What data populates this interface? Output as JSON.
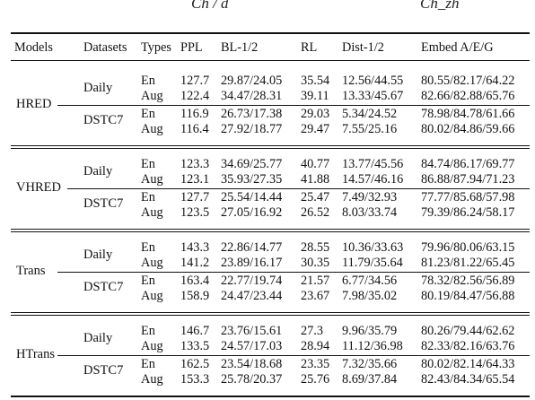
{
  "top_fragments": {
    "left": "Ch / d",
    "right": "Ch_zh"
  },
  "table": {
    "headers": [
      "Models",
      "Datasets",
      "Types",
      "PPL",
      "BL-1/2",
      "RL",
      "Dist-1/2",
      "Embed A/E/G"
    ],
    "groups": [
      {
        "model": "HRED",
        "datasets": [
          {
            "name": "Daily",
            "rows": [
              {
                "type": "En",
                "ppl": "127.7",
                "bl": "29.87/24.05",
                "rl": "35.54",
                "dist": "12.56/44.55",
                "embed": "80.55/82.17/64.22"
              },
              {
                "type": "Aug",
                "ppl": "122.4",
                "bl": "34.47/28.31",
                "rl": "39.11",
                "dist": "13.33/45.67",
                "embed": "82.66/82.88/65.76"
              }
            ]
          },
          {
            "name": "DSTC7",
            "rows": [
              {
                "type": "En",
                "ppl": "116.9",
                "bl": "26.73/17.38",
                "rl": "29.03",
                "dist": "5.34/24.52",
                "embed": "78.98/84.78/61.66"
              },
              {
                "type": "Aug",
                "ppl": "116.4",
                "bl": "27.92/18.77",
                "rl": "29.47",
                "dist": "7.55/25.16",
                "embed": "80.02/84.86/59.66"
              }
            ]
          }
        ]
      },
      {
        "model": "VHRED",
        "datasets": [
          {
            "name": "Daily",
            "rows": [
              {
                "type": "En",
                "ppl": "123.3",
                "bl": "34.69/25.77",
                "rl": "40.77",
                "dist": "13.77/45.56",
                "embed": "84.74/86.17/69.77"
              },
              {
                "type": "Aug",
                "ppl": "123.1",
                "bl": "35.93/27.35",
                "rl": "41.88",
                "dist": "14.57/46.16",
                "embed": "86.88/87.94/71.23"
              }
            ]
          },
          {
            "name": "DSTC7",
            "rows": [
              {
                "type": "En",
                "ppl": "127.7",
                "bl": "25.54/14.44",
                "rl": "25.47",
                "dist": "7.49/32.93",
                "embed": "77.77/85.68/57.98"
              },
              {
                "type": "Aug",
                "ppl": "123.5",
                "bl": "27.05/16.92",
                "rl": "26.52",
                "dist": "8.03/33.74",
                "embed": "79.39/86.24/58.17"
              }
            ]
          }
        ]
      },
      {
        "model": "Trans",
        "datasets": [
          {
            "name": "Daily",
            "rows": [
              {
                "type": "En",
                "ppl": "143.3",
                "bl": "22.86/14.77",
                "rl": "28.55",
                "dist": "10.36/33.63",
                "embed": "79.96/80.06/63.15"
              },
              {
                "type": "Aug",
                "ppl": "141.2",
                "bl": "23.89/16.17",
                "rl": "30.35",
                "dist": "11.79/35.64",
                "embed": "81.23/81.22/65.45"
              }
            ]
          },
          {
            "name": "DSTC7",
            "rows": [
              {
                "type": "En",
                "ppl": "163.4",
                "bl": "22.77/19.74",
                "rl": "21.57",
                "dist": "6.77/34.56",
                "embed": "78.32/82.56/56.89"
              },
              {
                "type": "Aug",
                "ppl": "158.9",
                "bl": "24.47/23.44",
                "rl": "23.67",
                "dist": "7.98/35.02",
                "embed": "80.19/84.47/56.88"
              }
            ]
          }
        ]
      },
      {
        "model": "HTrans",
        "datasets": [
          {
            "name": "Daily",
            "rows": [
              {
                "type": "En",
                "ppl": "146.7",
                "bl": "23.76/15.61",
                "rl": "27.3",
                "dist": "9.96/35.79",
                "embed": "80.26/79.44/62.62"
              },
              {
                "type": "Aug",
                "ppl": "133.5",
                "bl": "24.57/17.03",
                "rl": "28.94",
                "dist": "11.12/36.98",
                "embed": "82.33/82.16/63.76"
              }
            ]
          },
          {
            "name": "DSTC7",
            "rows": [
              {
                "type": "En",
                "ppl": "162.5",
                "bl": "23.54/18.68",
                "rl": "23.35",
                "dist": "7.32/35.66",
                "embed": "80.02/82.14/64.33"
              },
              {
                "type": "Aug",
                "ppl": "153.3",
                "bl": "25.78/20.37",
                "rl": "25.76",
                "dist": "8.69/37.84",
                "embed": "82.43/84.34/65.54"
              }
            ]
          }
        ]
      }
    ]
  }
}
